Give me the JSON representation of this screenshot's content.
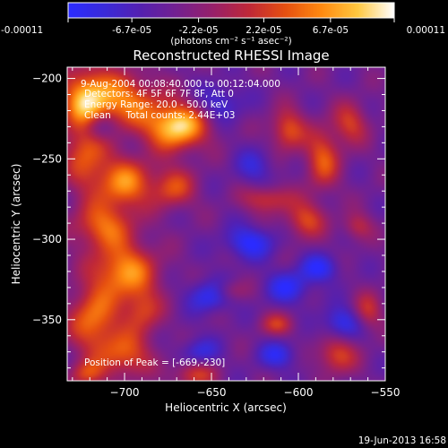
{
  "chart_data": {
    "type": "heatmap",
    "title": "Reconstructed RHESSI Image",
    "xlabel": "Heliocentric X (arcsec)",
    "ylabel": "Heliocentric Y (arcsec)",
    "xlim": [
      -733,
      -550
    ],
    "ylim": [
      -388,
      -193
    ],
    "x_ticks": [
      -700,
      -650,
      -600,
      -550
    ],
    "y_ticks": [
      -200,
      -250,
      -300,
      -350
    ],
    "x_minor_step": 10,
    "y_minor_step": 10,
    "colorbar": {
      "min": -0.00011,
      "max": 0.00011,
      "tick_values": [
        -0.00011,
        -6.7e-05,
        -2.2e-05,
        2.2e-05,
        6.7e-05,
        0.00011
      ],
      "tick_labels": [
        "-0.00011",
        "-6.7e-05",
        "-2.2e-05",
        "2.2e-05",
        "6.7e-05",
        "0.00011"
      ],
      "unit_label": "(photons cm⁻² s⁻¹ asec⁻²)",
      "colormap": [
        "#2b2bff",
        "#3a2ad8",
        "#5520b0",
        "#742090",
        "#98206a",
        "#c02838",
        "#e65010",
        "#ff8a10",
        "#ffc840",
        "#ffffff"
      ]
    },
    "annotations": [
      "9-Aug-2004 00:08:40.000 to 00:12:04.000",
      "Detectors: 4F 5F 6F 7F 8F, Att 0",
      "Energy Range: 20.0 - 50.0 keV",
      "Clean     Total counts: 2.44E+03"
    ],
    "peak_label": "Position of Peak = [-669,-230]",
    "timestamp": "19-Jun-2013 16:58",
    "sources": [
      {
        "x": -670,
        "y": -230,
        "amp": 1.0,
        "sx": 12,
        "sy": 10
      },
      {
        "x": -700,
        "y": -214,
        "amp": 0.65,
        "sx": 14,
        "sy": 12
      },
      {
        "x": -722,
        "y": -212,
        "amp": 0.7,
        "sx": 10,
        "sy": 14
      },
      {
        "x": -722,
        "y": -245,
        "amp": 0.55,
        "sx": 9,
        "sy": 18
      },
      {
        "x": -700,
        "y": -265,
        "amp": 0.7,
        "sx": 11,
        "sy": 11
      },
      {
        "x": -672,
        "y": -268,
        "amp": 0.5,
        "sx": 9,
        "sy": 9
      },
      {
        "x": -712,
        "y": -292,
        "amp": 0.6,
        "sx": 12,
        "sy": 10
      },
      {
        "x": -700,
        "y": -320,
        "amp": 0.75,
        "sx": 13,
        "sy": 12
      },
      {
        "x": -718,
        "y": -350,
        "amp": 0.65,
        "sx": 10,
        "sy": 14
      },
      {
        "x": -700,
        "y": -372,
        "amp": 0.55,
        "sx": 11,
        "sy": 10
      },
      {
        "x": -690,
        "y": -345,
        "amp": 0.45,
        "sx": 8,
        "sy": 10
      },
      {
        "x": -606,
        "y": -232,
        "amp": 0.55,
        "sx": 7,
        "sy": 9
      },
      {
        "x": -586,
        "y": -250,
        "amp": 0.55,
        "sx": 7,
        "sy": 13
      },
      {
        "x": -570,
        "y": -228,
        "amp": 0.45,
        "sx": 7,
        "sy": 9
      },
      {
        "x": -596,
        "y": -288,
        "amp": 0.5,
        "sx": 8,
        "sy": 8
      },
      {
        "x": -618,
        "y": -275,
        "amp": 0.45,
        "sx": 10,
        "sy": 6
      },
      {
        "x": -566,
        "y": -292,
        "amp": 0.35,
        "sx": 6,
        "sy": 6
      },
      {
        "x": -578,
        "y": -372,
        "amp": 0.5,
        "sx": 8,
        "sy": 8
      },
      {
        "x": -560,
        "y": -345,
        "amp": 0.4,
        "sx": 6,
        "sy": 8
      },
      {
        "x": -612,
        "y": -353,
        "amp": 0.4,
        "sx": 7,
        "sy": 5
      },
      {
        "x": -640,
        "y": -332,
        "amp": 0.35,
        "sx": 7,
        "sy": 5
      },
      {
        "x": -660,
        "y": -384,
        "amp": 0.45,
        "sx": 9,
        "sy": 6
      },
      {
        "x": -722,
        "y": -384,
        "amp": 0.45,
        "sx": 7,
        "sy": 6
      },
      {
        "x": -715,
        "y": -230,
        "amp": -0.55,
        "sx": 7,
        "sy": 7
      },
      {
        "x": -645,
        "y": -215,
        "amp": -0.35,
        "sx": 9,
        "sy": 8
      },
      {
        "x": -628,
        "y": -302,
        "amp": -0.5,
        "sx": 10,
        "sy": 7
      },
      {
        "x": -650,
        "y": -335,
        "amp": -0.5,
        "sx": 9,
        "sy": 7
      },
      {
        "x": -606,
        "y": -330,
        "amp": -0.45,
        "sx": 9,
        "sy": 7
      },
      {
        "x": -588,
        "y": -318,
        "amp": -0.45,
        "sx": 8,
        "sy": 6
      },
      {
        "x": -575,
        "y": -352,
        "amp": -0.45,
        "sx": 8,
        "sy": 7
      },
      {
        "x": -612,
        "y": -372,
        "amp": -0.4,
        "sx": 8,
        "sy": 6
      },
      {
        "x": -657,
        "y": -370,
        "amp": -0.35,
        "sx": 8,
        "sy": 6
      },
      {
        "x": -625,
        "y": -255,
        "amp": -0.3,
        "sx": 8,
        "sy": 8
      }
    ]
  }
}
